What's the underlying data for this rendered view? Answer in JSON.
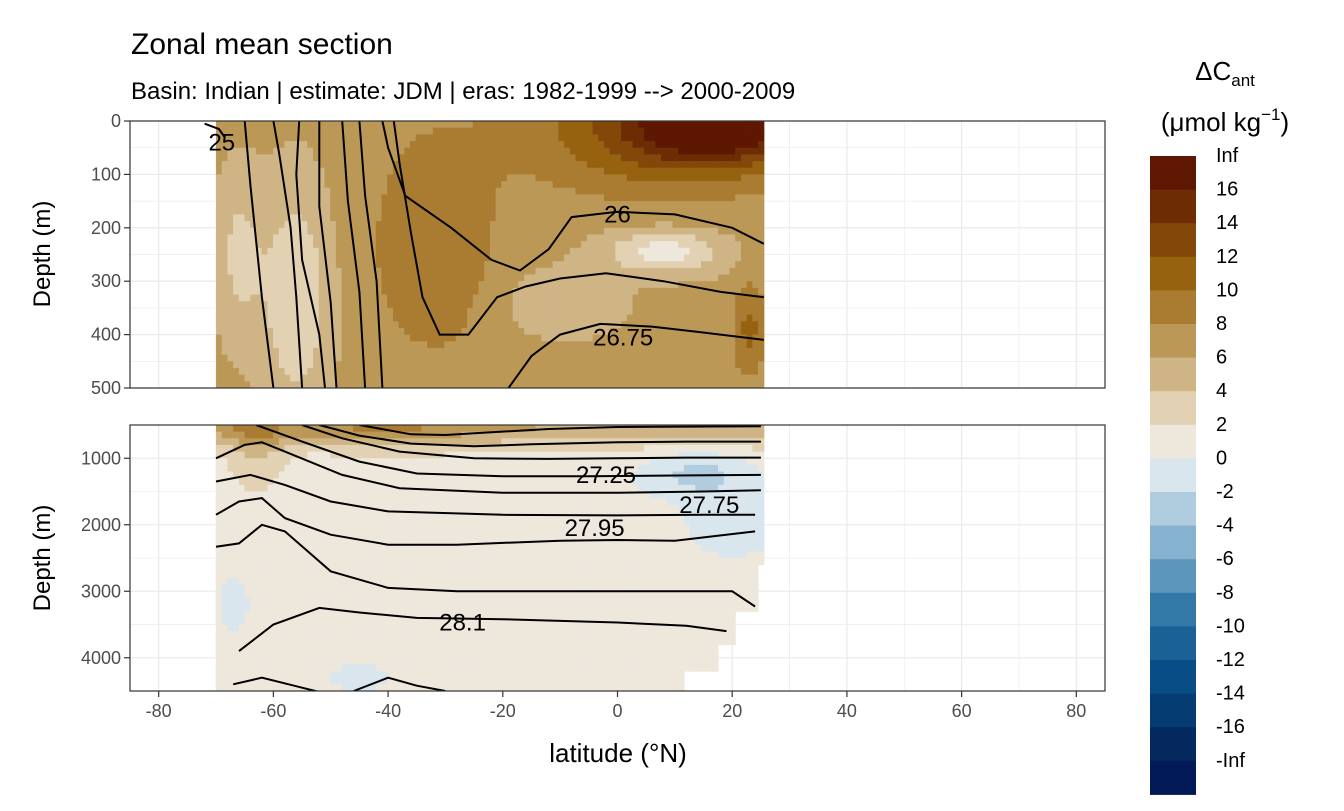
{
  "chart_data": {
    "type": "heatmap",
    "title": "Zonal mean section",
    "subtitle": "Basin: Indian | estimate: JDM  | eras: 1982-1999 --> 2000-2009",
    "xlabel": "latitude (°N)",
    "ylabel": "Depth (m)",
    "xlim": [
      -85,
      85
    ],
    "x_ticks": [
      -80,
      -60,
      -40,
      -20,
      0,
      20,
      40,
      60,
      80
    ],
    "x_tick_labels": [
      "-80",
      "-60",
      "-40",
      "-20",
      "0",
      "20",
      "40",
      "60",
      "80"
    ],
    "data_lat_range": [
      -70,
      25.5
    ],
    "panels": [
      {
        "name": "upper",
        "ylim": [
          0,
          500
        ],
        "y_ticks": [
          0,
          100,
          200,
          300,
          400,
          500
        ],
        "y_tick_labels": [
          "0",
          "100",
          "200",
          "300",
          "400",
          "500"
        ],
        "isopycnal_labels": [
          {
            "text": "25",
            "lat": -69,
            "depth": 40
          },
          {
            "text": "26",
            "lat": 0,
            "depth": 175
          },
          {
            "text": "26.75",
            "lat": 1,
            "depth": 405
          }
        ]
      },
      {
        "name": "lower",
        "ylim": [
          500,
          4500
        ],
        "y_ticks": [
          1000,
          2000,
          3000,
          4000
        ],
        "y_tick_labels": [
          "1000",
          "2000",
          "3000",
          "4000"
        ],
        "isopycnal_labels": [
          {
            "text": "27.25",
            "lat": -2,
            "depth": 1250
          },
          {
            "text": "27.75",
            "lat": 16,
            "depth": 1700
          },
          {
            "text": "27.95",
            "lat": -4,
            "depth": 2050
          },
          {
            "text": "28.1",
            "lat": -27,
            "depth": 3470
          }
        ]
      }
    ],
    "legend": {
      "title_main": "ΔC",
      "title_sub": "ant",
      "unit_prefix": "(μmol kg",
      "unit_sup": "−1",
      "unit_suffix": ")",
      "placement": "right",
      "labels": [
        "Inf",
        "16",
        "14",
        "12",
        "10",
        "8",
        "6",
        "4",
        "2",
        "0",
        "-2",
        "-4",
        "-6",
        "-8",
        "-10",
        "-12",
        "-14",
        "-16",
        "-Inf"
      ],
      "colors": [
        "#5e1700",
        "#6e2c04",
        "#824709",
        "#96620f",
        "#a97c32",
        "#bc9857",
        "#cfb585",
        "#e2d2b3",
        "#eee7dc",
        "#dae6ee",
        "#b0cde0",
        "#85b3cf",
        "#5b97bd",
        "#3379a8",
        "#1a6196",
        "#094d86",
        "#053d72",
        "#04295f",
        "#021a57"
      ]
    }
  }
}
